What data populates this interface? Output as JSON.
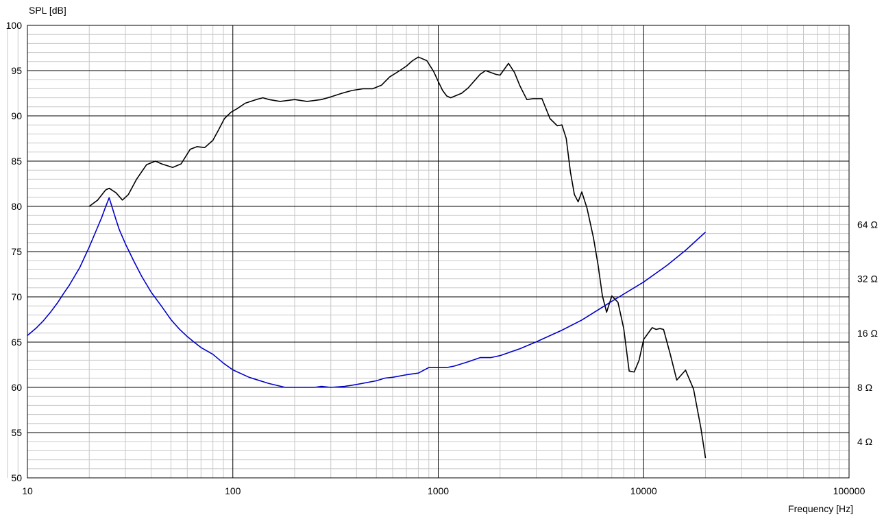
{
  "chart_data": {
    "type": "line",
    "xlabel": "Frequency [Hz]",
    "ylabel": "SPL [dB]",
    "x_scale": "log",
    "xlim": [
      10,
      100000
    ],
    "ylim": [
      50,
      100
    ],
    "grid": true,
    "x_ticks": [
      {
        "value": 10,
        "label": "10"
      },
      {
        "value": 100,
        "label": "100"
      },
      {
        "value": 1000,
        "label": "1000"
      },
      {
        "value": 10000,
        "label": "10000"
      },
      {
        "value": 100000,
        "label": "100000"
      }
    ],
    "y_ticks": [
      {
        "value": 50,
        "label": "50"
      },
      {
        "value": 55,
        "label": "55"
      },
      {
        "value": 60,
        "label": "60"
      },
      {
        "value": 65,
        "label": "65"
      },
      {
        "value": 70,
        "label": "70"
      },
      {
        "value": 75,
        "label": "75"
      },
      {
        "value": 80,
        "label": "80"
      },
      {
        "value": 85,
        "label": "85"
      },
      {
        "value": 90,
        "label": "90"
      },
      {
        "value": 95,
        "label": "95"
      },
      {
        "value": 100,
        "label": "100"
      }
    ],
    "y2_scale": "log",
    "y2_ticks": [
      {
        "value": 4,
        "label": "4 Ω"
      },
      {
        "value": 8,
        "label": "8 Ω"
      },
      {
        "value": 16,
        "label": "16 Ω"
      },
      {
        "value": 32,
        "label": "32 Ω"
      },
      {
        "value": 64,
        "label": "64 Ω"
      }
    ],
    "series": [
      {
        "axis": "left",
        "color": "#000000",
        "x": [
          20,
          22,
          24,
          25,
          27,
          29,
          31,
          34,
          38,
          42,
          45,
          51,
          56,
          62,
          67,
          73,
          80,
          85,
          91,
          98,
          105,
          115,
          130,
          140,
          150,
          170,
          200,
          230,
          270,
          300,
          340,
          380,
          430,
          480,
          530,
          580,
          650,
          700,
          750,
          800,
          880,
          950,
          1000,
          1050,
          1100,
          1150,
          1300,
          1400,
          1600,
          1700,
          1900,
          2000,
          2200,
          2350,
          2500,
          2700,
          2900,
          3200,
          3500,
          3800,
          4000,
          4200,
          4400,
          4600,
          4800,
          5000,
          5300,
          5700,
          6000,
          6300,
          6600,
          7000,
          7500,
          8000,
          8500,
          9000,
          9500,
          10000,
          11000,
          11500,
          12000,
          12500,
          13500,
          14500,
          16000,
          17500,
          19000,
          20000
        ],
        "y": [
          80,
          80.7,
          81.8,
          82,
          81.5,
          80.7,
          81.3,
          83,
          84.6,
          85,
          84.7,
          84.3,
          84.7,
          86.3,
          86.6,
          86.5,
          87.3,
          88.4,
          89.7,
          90.4,
          90.8,
          91.4,
          91.8,
          92,
          91.8,
          91.6,
          91.8,
          91.6,
          91.8,
          92.1,
          92.5,
          92.8,
          93,
          93,
          93.4,
          94.3,
          95,
          95.5,
          96.1,
          96.5,
          96.1,
          94.9,
          93.8,
          92.8,
          92.2,
          92,
          92.5,
          93.1,
          94.6,
          95,
          94.6,
          94.5,
          95.8,
          94.8,
          93.3,
          91.8,
          91.9,
          91.9,
          89.7,
          88.9,
          89,
          87.5,
          83.8,
          81.3,
          80.5,
          81.6,
          79.8,
          76.5,
          73.5,
          70.1,
          68.3,
          70.1,
          69.4,
          66.5,
          61.8,
          61.7,
          63,
          65.3,
          66.6,
          66.4,
          66.5,
          66.4,
          63.6,
          60.8,
          61.9,
          59.8,
          55.5,
          52.2
        ]
      },
      {
        "axis": "right",
        "color": "#0000cc",
        "x": [
          10,
          11,
          12,
          13,
          14,
          15,
          16,
          18,
          20,
          22,
          23,
          24,
          25,
          26,
          27,
          28,
          30,
          33,
          36,
          40,
          45,
          50,
          55,
          60,
          65,
          70,
          80,
          90,
          100,
          120,
          150,
          180,
          200,
          250,
          270,
          300,
          350,
          400,
          500,
          550,
          600,
          700,
          800,
          900,
          1000,
          1100,
          1200,
          1400,
          1600,
          1800,
          2000,
          2500,
          3000,
          4000,
          5000,
          7000,
          10000,
          13000,
          16000,
          20000
        ],
        "y": [
          15.5,
          17,
          18.8,
          21,
          23.5,
          26.5,
          29.5,
          37,
          48,
          62,
          70,
          80,
          90,
          78,
          68,
          60,
          50,
          40,
          33,
          27,
          22.5,
          19,
          16.8,
          15.3,
          14.2,
          13.3,
          12.2,
          10.9,
          10,
          9.1,
          8.4,
          8,
          8,
          8,
          8.1,
          8,
          8.1,
          8.3,
          8.7,
          9,
          9.1,
          9.4,
          9.6,
          10.3,
          10.3,
          10.3,
          10.5,
          11.1,
          11.7,
          11.7,
          12,
          13.1,
          14.3,
          16.6,
          18.9,
          24,
          30.7,
          38,
          46,
          58
        ]
      }
    ]
  }
}
